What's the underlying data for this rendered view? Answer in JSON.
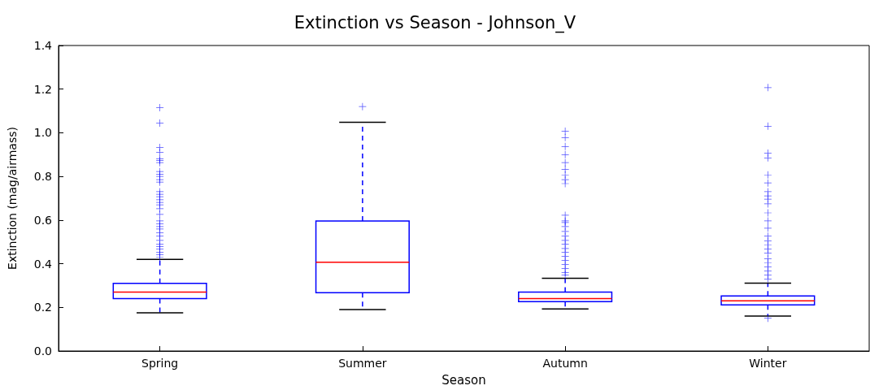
{
  "chart_data": {
    "type": "box",
    "title": "Extinction vs Season - Johnson_V",
    "xlabel": "Season",
    "ylabel": "Extinction (mag/airmass)",
    "categories": [
      "Spring",
      "Summer",
      "Autumn",
      "Winter"
    ],
    "ylim": [
      0,
      1.4
    ],
    "yticks": [
      {
        "value": 0,
        "label": "0.0"
      },
      {
        "value": 0.2,
        "label": "0.2"
      },
      {
        "value": 0.4,
        "label": "0.4"
      },
      {
        "value": 0.6,
        "label": "0.6"
      },
      {
        "value": 0.8,
        "label": "0.8"
      },
      {
        "value": 1.0,
        "label": "1.0"
      },
      {
        "value": 1.2,
        "label": "1.2"
      },
      {
        "value": 1.4,
        "label": "1.4"
      }
    ],
    "grid": false,
    "marker": "cross",
    "line_style": "dashed",
    "series": [
      {
        "color": "#0000ff",
        "boxes": [
          {
            "low": 0.175,
            "q1": 0.24,
            "median": 0.27,
            "q3": 0.31,
            "high": 0.42,
            "outliers": [
              1.115,
              1.044,
              0.933,
              0.911,
              0.88,
              0.873,
              0.863,
              0.822,
              0.81,
              0.8,
              0.785,
              0.774,
              0.73,
              0.718,
              0.707,
              0.693,
              0.681,
              0.67,
              0.652,
              0.626,
              0.596,
              0.582,
              0.57,
              0.559,
              0.541,
              0.526,
              0.507,
              0.489,
              0.478,
              0.467,
              0.452,
              0.441,
              0.43
            ]
          },
          {
            "low": 0.19,
            "q1": 0.267,
            "median": 0.407,
            "q3": 0.596,
            "high": 1.048,
            "outliers": [
              1.12
            ]
          },
          {
            "low": 0.193,
            "q1": 0.226,
            "median": 0.24,
            "q3": 0.27,
            "high": 0.333,
            "outliers": [
              1.007,
              0.978,
              0.937,
              0.9,
              0.863,
              0.833,
              0.807,
              0.785,
              0.767,
              0.622,
              0.596,
              0.589,
              0.57,
              0.548,
              0.526,
              0.507,
              0.489,
              0.47,
              0.452,
              0.433,
              0.415,
              0.396,
              0.378,
              0.359,
              0.348
            ]
          },
          {
            "low": 0.16,
            "q1": 0.211,
            "median": 0.23,
            "q3": 0.252,
            "high": 0.311,
            "outliers": [
              1.207,
              1.03,
              0.907,
              0.885,
              0.807,
              0.77,
              0.73,
              0.711,
              0.696,
              0.674,
              0.633,
              0.596,
              0.563,
              0.526,
              0.504,
              0.485,
              0.467,
              0.448,
              0.422,
              0.404,
              0.385,
              0.367,
              0.348,
              0.33,
              0.15
            ]
          }
        ]
      }
    ]
  }
}
